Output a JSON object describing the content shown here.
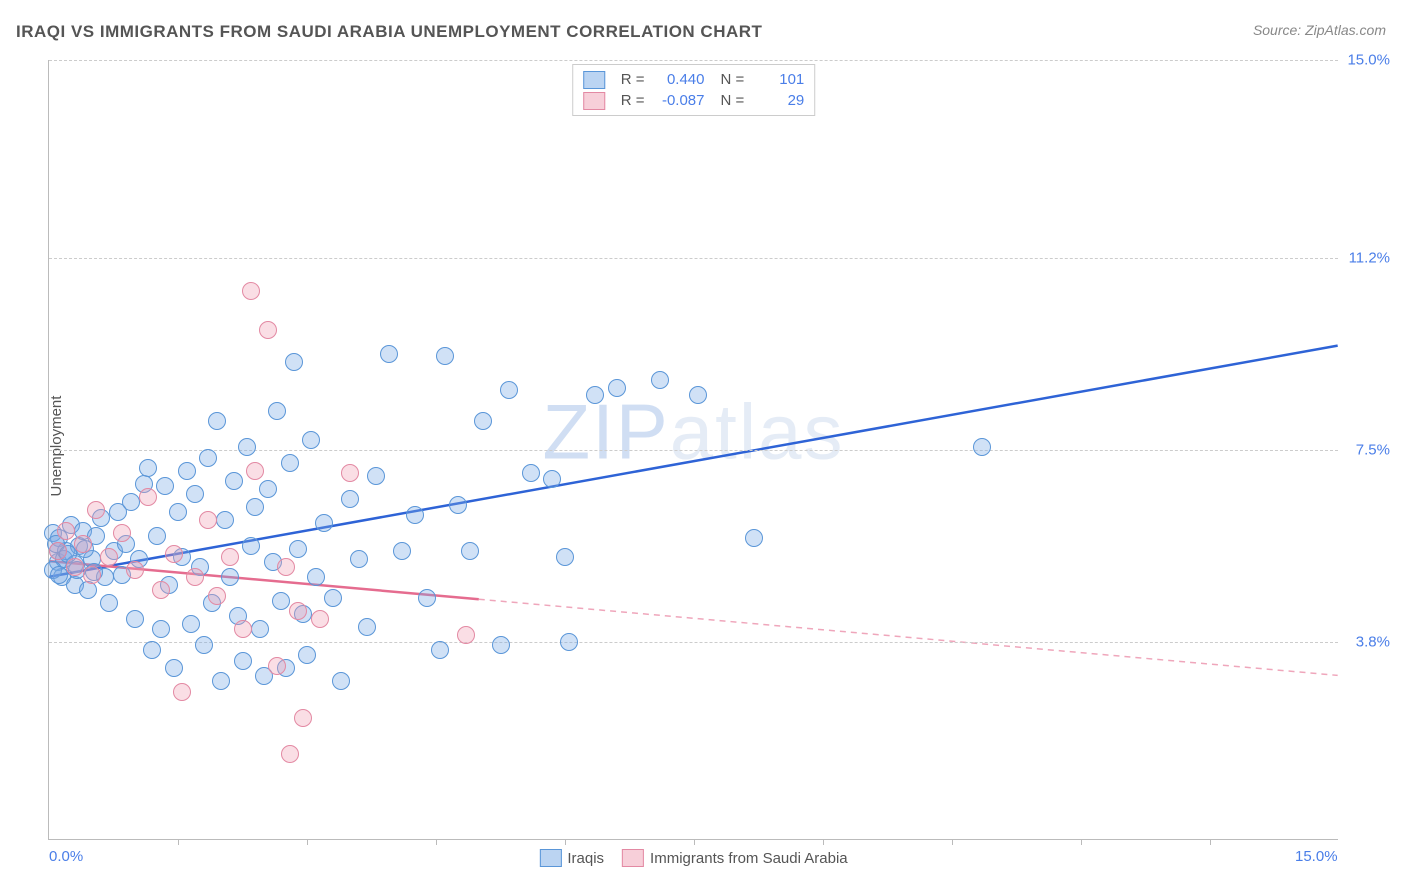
{
  "title": "IRAQI VS IMMIGRANTS FROM SAUDI ARABIA UNEMPLOYMENT CORRELATION CHART",
  "source": "Source: ZipAtlas.com",
  "ylabel": "Unemployment",
  "watermark": {
    "zip": "ZIP",
    "atlas": "atlas"
  },
  "chart": {
    "type": "scatter",
    "xlim": [
      0.0,
      15.0
    ],
    "ylim": [
      0.0,
      15.0
    ],
    "x_labels": [
      {
        "val": 0.0,
        "text": "0.0%"
      },
      {
        "val": 15.0,
        "text": "15.0%"
      }
    ],
    "y_gridlines": [
      {
        "val": 3.8,
        "text": "3.8%"
      },
      {
        "val": 7.5,
        "text": "7.5%"
      },
      {
        "val": 11.2,
        "text": "11.2%"
      },
      {
        "val": 15.0,
        "text": "15.0%"
      }
    ],
    "y_right_top": "15.0%",
    "xticks": [
      1.5,
      3.0,
      4.5,
      6.0,
      7.5,
      9.0,
      10.5,
      12.0,
      13.5
    ],
    "background_color": "#ffffff",
    "grid_color": "#cccccc",
    "axis_color": "#bbbbbb",
    "marker_radius": 9,
    "line_width": 2.5,
    "series": [
      {
        "key": "iraqis",
        "label": "Iraqis",
        "R": "0.440",
        "N": "101",
        "fill": "rgba(120, 170, 230, 0.35)",
        "stroke": "#5a96d8",
        "line_color": "#2e63d6",
        "trend": {
          "x1": 0.0,
          "y1": 5.05,
          "x2": 15.0,
          "y2": 9.5,
          "solid_until_x": 15.0
        },
        "points": [
          [
            0.05,
            5.9
          ],
          [
            0.1,
            5.35
          ],
          [
            0.1,
            5.55
          ],
          [
            0.12,
            5.8
          ],
          [
            0.15,
            5.05
          ],
          [
            0.18,
            5.4
          ],
          [
            0.2,
            5.55
          ],
          [
            0.25,
            6.05
          ],
          [
            0.3,
            5.3
          ],
          [
            0.3,
            4.9
          ],
          [
            0.35,
            5.65
          ],
          [
            0.4,
            5.95
          ],
          [
            0.45,
            4.8
          ],
          [
            0.5,
            5.4
          ],
          [
            0.55,
            5.85
          ],
          [
            0.6,
            6.2
          ],
          [
            0.65,
            5.05
          ],
          [
            0.7,
            4.55
          ],
          [
            0.75,
            5.55
          ],
          [
            0.8,
            6.3
          ],
          [
            0.85,
            5.1
          ],
          [
            0.9,
            5.7
          ],
          [
            0.95,
            6.5
          ],
          [
            1.0,
            4.25
          ],
          [
            1.05,
            5.4
          ],
          [
            1.1,
            6.85
          ],
          [
            1.15,
            7.15
          ],
          [
            1.2,
            3.65
          ],
          [
            1.25,
            5.85
          ],
          [
            1.3,
            4.05
          ],
          [
            1.35,
            6.8
          ],
          [
            1.4,
            4.9
          ],
          [
            1.45,
            3.3
          ],
          [
            1.5,
            6.3
          ],
          [
            1.55,
            5.45
          ],
          [
            1.6,
            7.1
          ],
          [
            1.65,
            4.15
          ],
          [
            1.7,
            6.65
          ],
          [
            1.75,
            5.25
          ],
          [
            1.8,
            3.75
          ],
          [
            1.85,
            7.35
          ],
          [
            1.9,
            4.55
          ],
          [
            1.95,
            8.05
          ],
          [
            2.0,
            3.05
          ],
          [
            2.05,
            6.15
          ],
          [
            2.1,
            5.05
          ],
          [
            2.15,
            6.9
          ],
          [
            2.2,
            4.3
          ],
          [
            2.25,
            3.45
          ],
          [
            2.3,
            7.55
          ],
          [
            2.35,
            5.65
          ],
          [
            2.4,
            6.4
          ],
          [
            2.45,
            4.05
          ],
          [
            2.5,
            3.15
          ],
          [
            2.55,
            6.75
          ],
          [
            2.6,
            5.35
          ],
          [
            2.65,
            8.25
          ],
          [
            2.7,
            4.6
          ],
          [
            2.75,
            3.3
          ],
          [
            2.8,
            7.25
          ],
          [
            2.85,
            9.2
          ],
          [
            2.9,
            5.6
          ],
          [
            2.95,
            4.35
          ],
          [
            3.0,
            3.55
          ],
          [
            3.05,
            7.7
          ],
          [
            3.1,
            5.05
          ],
          [
            3.2,
            6.1
          ],
          [
            3.3,
            4.65
          ],
          [
            3.4,
            3.05
          ],
          [
            3.5,
            6.55
          ],
          [
            3.6,
            5.4
          ],
          [
            3.7,
            4.1
          ],
          [
            3.8,
            7.0
          ],
          [
            3.95,
            9.35
          ],
          [
            4.1,
            5.55
          ],
          [
            4.25,
            6.25
          ],
          [
            4.4,
            4.65
          ],
          [
            4.55,
            3.65
          ],
          [
            4.6,
            9.3
          ],
          [
            4.75,
            6.45
          ],
          [
            4.9,
            5.55
          ],
          [
            5.05,
            8.05
          ],
          [
            5.25,
            3.75
          ],
          [
            5.35,
            8.65
          ],
          [
            5.6,
            7.05
          ],
          [
            5.85,
            6.95
          ],
          [
            6.0,
            5.45
          ],
          [
            6.05,
            3.8
          ],
          [
            6.35,
            8.55
          ],
          [
            6.6,
            8.7
          ],
          [
            7.1,
            8.85
          ],
          [
            7.55,
            8.55
          ],
          [
            8.2,
            5.8
          ],
          [
            10.85,
            7.55
          ],
          [
            0.05,
            5.2
          ],
          [
            0.08,
            5.7
          ],
          [
            0.12,
            5.1
          ],
          [
            0.22,
            5.5
          ],
          [
            0.32,
            5.2
          ],
          [
            0.42,
            5.6
          ],
          [
            0.52,
            5.15
          ]
        ]
      },
      {
        "key": "saudi",
        "label": "Immigrants from Saudi Arabia",
        "R": "-0.087",
        "N": "29",
        "fill": "rgba(240, 160, 180, 0.35)",
        "stroke": "#e389a3",
        "line_color": "#e56c8f",
        "trend": {
          "x1": 0.0,
          "y1": 5.35,
          "x2": 15.0,
          "y2": 3.15,
          "solid_until_x": 5.0
        },
        "points": [
          [
            0.1,
            5.55
          ],
          [
            0.2,
            5.95
          ],
          [
            0.3,
            5.25
          ],
          [
            0.4,
            5.7
          ],
          [
            0.5,
            5.1
          ],
          [
            0.55,
            6.35
          ],
          [
            0.7,
            5.45
          ],
          [
            0.85,
            5.9
          ],
          [
            1.0,
            5.2
          ],
          [
            1.15,
            6.6
          ],
          [
            1.3,
            4.8
          ],
          [
            1.45,
            5.5
          ],
          [
            1.55,
            2.85
          ],
          [
            1.7,
            5.05
          ],
          [
            1.85,
            6.15
          ],
          [
            1.95,
            4.7
          ],
          [
            2.1,
            5.45
          ],
          [
            2.25,
            4.05
          ],
          [
            2.35,
            10.55
          ],
          [
            2.4,
            7.1
          ],
          [
            2.55,
            9.8
          ],
          [
            2.65,
            3.35
          ],
          [
            2.75,
            5.25
          ],
          [
            2.8,
            1.65
          ],
          [
            2.9,
            4.4
          ],
          [
            2.95,
            2.35
          ],
          [
            3.15,
            4.25
          ],
          [
            3.5,
            7.05
          ],
          [
            4.85,
            3.95
          ]
        ]
      }
    ]
  },
  "legend_top": {
    "r_label": "R =",
    "n_label": "N ="
  },
  "legend_bottom": [
    {
      "label": "Iraqis",
      "fill": "rgba(120, 170, 230, 0.5)",
      "stroke": "#5a96d8"
    },
    {
      "label": "Immigrants from Saudi Arabia",
      "fill": "rgba(240, 160, 180, 0.5)",
      "stroke": "#e389a3"
    }
  ]
}
